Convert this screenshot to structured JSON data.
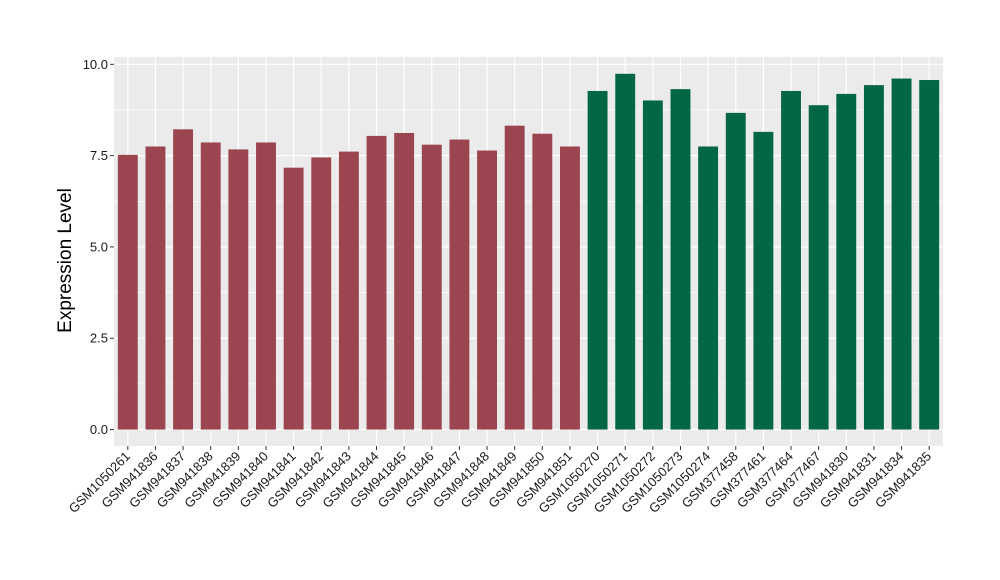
{
  "chart_data": {
    "type": "bar",
    "ylabel": "Expression Level",
    "xlabel": "",
    "ylim": [
      -0.45,
      10.2
    ],
    "yticks": [
      0.0,
      2.5,
      5.0,
      7.5,
      10.0
    ],
    "ytick_labels": [
      "0.0",
      "2.5",
      "5.0",
      "7.5",
      "10.0"
    ],
    "grid": true,
    "legend": "none",
    "panel_background": "#ebebeb",
    "grid_color": "#ffffff",
    "categories": [
      "GSM1050261",
      "GSM941836",
      "GSM941837",
      "GSM941838",
      "GSM941839",
      "GSM941840",
      "GSM941841",
      "GSM941842",
      "GSM941843",
      "GSM941844",
      "GSM941845",
      "GSM941846",
      "GSM941847",
      "GSM941848",
      "GSM941849",
      "GSM941850",
      "GSM941851",
      "GSM1050270",
      "GSM1050271",
      "GSM1050272",
      "GSM1050273",
      "GSM1050274",
      "GSM377458",
      "GSM377461",
      "GSM377464",
      "GSM377467",
      "GSM941830",
      "GSM941831",
      "GSM941834",
      "GSM941835"
    ],
    "values": [
      7.52,
      7.75,
      8.22,
      7.86,
      7.67,
      7.86,
      7.17,
      7.45,
      7.61,
      8.04,
      8.12,
      7.8,
      7.94,
      7.64,
      8.32,
      8.1,
      7.75,
      9.27,
      9.74,
      9.01,
      9.32,
      7.75,
      8.67,
      8.15,
      9.27,
      8.88,
      9.19,
      9.43,
      9.61,
      9.57
    ],
    "bar_colors": [
      "#9b4550",
      "#9b4550",
      "#9b4550",
      "#9b4550",
      "#9b4550",
      "#9b4550",
      "#9b4550",
      "#9b4550",
      "#9b4550",
      "#9b4550",
      "#9b4550",
      "#9b4550",
      "#9b4550",
      "#9b4550",
      "#9b4550",
      "#9b4550",
      "#9b4550",
      "#036645",
      "#036645",
      "#036645",
      "#036645",
      "#036645",
      "#036645",
      "#036645",
      "#036645",
      "#036645",
      "#036645",
      "#036645",
      "#036645",
      "#036645"
    ]
  }
}
